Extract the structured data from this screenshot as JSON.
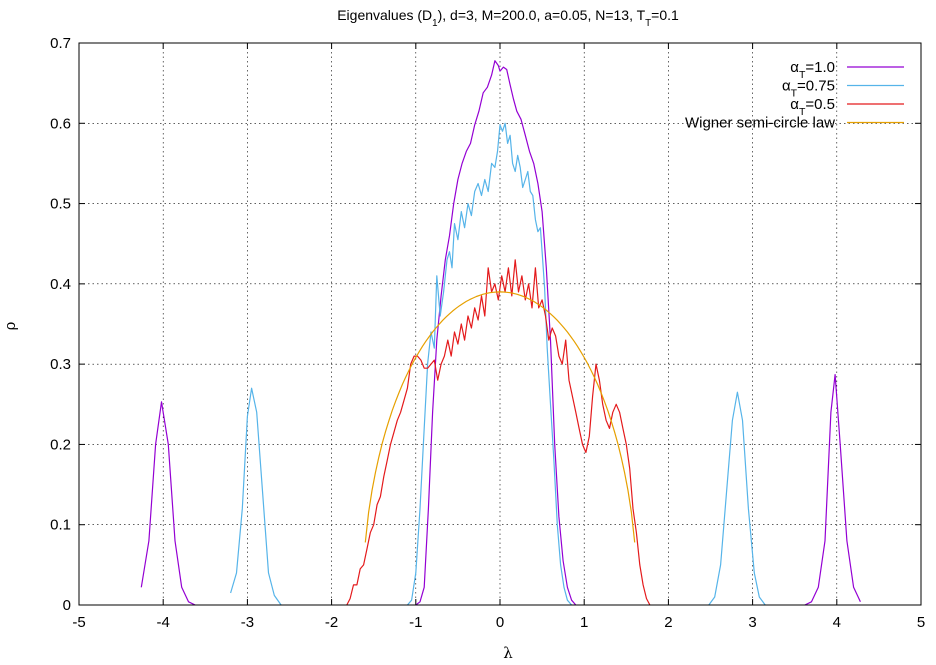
{
  "chart_data": {
    "type": "line",
    "title_parts": [
      {
        "t": "Eigenvalues (D"
      },
      {
        "t": "1",
        "sub": true
      },
      {
        "t": "), d=3, M=200.0, a=0.05, N=13, T"
      },
      {
        "t": "T",
        "sub": true
      },
      {
        "t": "=0.1"
      }
    ],
    "title": "Eigenvalues (D1), d=3, M=200.0, a=0.05, N=13, TT=0.1",
    "xlabel": "λ",
    "ylabel": "ρ",
    "xlim": [
      -5,
      5
    ],
    "ylim": [
      0,
      0.7
    ],
    "xticks": [
      -5,
      -4,
      -3,
      -2,
      -1,
      0,
      1,
      2,
      3,
      4,
      5
    ],
    "yticks": [
      0,
      0.1,
      0.2,
      0.3,
      0.4,
      0.5,
      0.6,
      0.7
    ],
    "grid": true,
    "legend_position": "top-right",
    "series": [
      {
        "name": "αT=1.0",
        "name_parts": [
          {
            "t": "α"
          },
          {
            "t": "T",
            "sub": true
          },
          {
            "t": "=1.0"
          }
        ],
        "color": "#9400d3",
        "points": [
          [
            -4.26,
            0.022
          ],
          [
            -4.17,
            0.08
          ],
          [
            -4.09,
            0.2
          ],
          [
            -4.02,
            0.253
          ],
          [
            -3.94,
            0.2
          ],
          [
            -3.86,
            0.08
          ],
          [
            -3.78,
            0.022
          ],
          [
            -3.7,
            0.004
          ],
          [
            -3.62,
            0.0
          ],
          null,
          [
            -1.0,
            0.0
          ],
          [
            -0.95,
            0.004
          ],
          [
            -0.9,
            0.022
          ],
          [
            -0.85,
            0.12
          ],
          [
            -0.8,
            0.24
          ],
          [
            -0.75,
            0.33
          ],
          [
            -0.7,
            0.385
          ],
          [
            -0.65,
            0.43
          ],
          [
            -0.6,
            0.46
          ],
          [
            -0.55,
            0.5
          ],
          [
            -0.5,
            0.53
          ],
          [
            -0.45,
            0.55
          ],
          [
            -0.4,
            0.565
          ],
          [
            -0.35,
            0.575
          ],
          [
            -0.3,
            0.598
          ],
          [
            -0.25,
            0.615
          ],
          [
            -0.2,
            0.638
          ],
          [
            -0.15,
            0.645
          ],
          [
            -0.1,
            0.66
          ],
          [
            -0.06,
            0.678
          ],
          [
            -0.02,
            0.672
          ],
          [
            0.0,
            0.665
          ],
          [
            0.04,
            0.67
          ],
          [
            0.08,
            0.667
          ],
          [
            0.12,
            0.648
          ],
          [
            0.16,
            0.63
          ],
          [
            0.2,
            0.615
          ],
          [
            0.25,
            0.605
          ],
          [
            0.3,
            0.585
          ],
          [
            0.35,
            0.565
          ],
          [
            0.4,
            0.55
          ],
          [
            0.45,
            0.525
          ],
          [
            0.5,
            0.49
          ],
          [
            0.55,
            0.42
          ],
          [
            0.6,
            0.33
          ],
          [
            0.65,
            0.2
          ],
          [
            0.7,
            0.11
          ],
          [
            0.75,
            0.055
          ],
          [
            0.8,
            0.022
          ],
          [
            0.85,
            0.006
          ],
          [
            0.9,
            0.0
          ],
          null,
          [
            3.62,
            0.0
          ],
          [
            3.7,
            0.004
          ],
          [
            3.78,
            0.022
          ],
          [
            3.86,
            0.08
          ],
          [
            3.93,
            0.24
          ],
          [
            3.98,
            0.287
          ],
          [
            4.04,
            0.2
          ],
          [
            4.12,
            0.08
          ],
          [
            4.2,
            0.022
          ],
          [
            4.28,
            0.004
          ]
        ]
      },
      {
        "name": "αT=0.75",
        "name_parts": [
          {
            "t": "α"
          },
          {
            "t": "T",
            "sub": true
          },
          {
            "t": "=0.75"
          }
        ],
        "color": "#56b4e9",
        "points": [
          [
            -3.2,
            0.015
          ],
          [
            -3.13,
            0.04
          ],
          [
            -3.06,
            0.12
          ],
          [
            -3.0,
            0.235
          ],
          [
            -2.95,
            0.27
          ],
          [
            -2.89,
            0.24
          ],
          [
            -2.82,
            0.14
          ],
          [
            -2.75,
            0.04
          ],
          [
            -2.68,
            0.012
          ],
          [
            -2.6,
            0.0
          ],
          null,
          [
            -1.1,
            0.0
          ],
          [
            -1.05,
            0.006
          ],
          [
            -1.0,
            0.04
          ],
          [
            -0.95,
            0.12
          ],
          [
            -0.9,
            0.22
          ],
          [
            -0.86,
            0.3
          ],
          [
            -0.82,
            0.34
          ],
          [
            -0.78,
            0.32
          ],
          [
            -0.75,
            0.41
          ],
          [
            -0.71,
            0.36
          ],
          [
            -0.67,
            0.39
          ],
          [
            -0.63,
            0.43
          ],
          [
            -0.6,
            0.44
          ],
          [
            -0.57,
            0.42
          ],
          [
            -0.54,
            0.475
          ],
          [
            -0.5,
            0.455
          ],
          [
            -0.46,
            0.49
          ],
          [
            -0.42,
            0.47
          ],
          [
            -0.38,
            0.5
          ],
          [
            -0.34,
            0.485
          ],
          [
            -0.3,
            0.515
          ],
          [
            -0.26,
            0.525
          ],
          [
            -0.22,
            0.51
          ],
          [
            -0.18,
            0.53
          ],
          [
            -0.14,
            0.515
          ],
          [
            -0.1,
            0.55
          ],
          [
            -0.06,
            0.545
          ],
          [
            -0.03,
            0.565
          ],
          [
            0.0,
            0.598
          ],
          [
            0.03,
            0.59
          ],
          [
            0.06,
            0.6
          ],
          [
            0.09,
            0.575
          ],
          [
            0.12,
            0.585
          ],
          [
            0.15,
            0.55
          ],
          [
            0.18,
            0.54
          ],
          [
            0.21,
            0.56
          ],
          [
            0.24,
            0.545
          ],
          [
            0.27,
            0.52
          ],
          [
            0.3,
            0.53
          ],
          [
            0.33,
            0.54
          ],
          [
            0.36,
            0.515
          ],
          [
            0.39,
            0.51
          ],
          [
            0.42,
            0.48
          ],
          [
            0.45,
            0.465
          ],
          [
            0.48,
            0.47
          ],
          [
            0.5,
            0.44
          ],
          [
            0.53,
            0.395
          ],
          [
            0.56,
            0.32
          ],
          [
            0.6,
            0.25
          ],
          [
            0.64,
            0.18
          ],
          [
            0.68,
            0.1
          ],
          [
            0.72,
            0.05
          ],
          [
            0.76,
            0.022
          ],
          [
            0.8,
            0.006
          ],
          [
            0.85,
            0.0
          ],
          null,
          [
            2.48,
            0.0
          ],
          [
            2.55,
            0.01
          ],
          [
            2.62,
            0.05
          ],
          [
            2.69,
            0.14
          ],
          [
            2.76,
            0.23
          ],
          [
            2.82,
            0.265
          ],
          [
            2.88,
            0.23
          ],
          [
            2.95,
            0.12
          ],
          [
            3.02,
            0.04
          ],
          [
            3.08,
            0.01
          ],
          [
            3.15,
            0.0
          ]
        ]
      },
      {
        "name": "αT=0.5",
        "name_parts": [
          {
            "t": "α"
          },
          {
            "t": "T",
            "sub": true
          },
          {
            "t": "=0.5"
          }
        ],
        "color": "#e41a1c",
        "points": [
          [
            -1.82,
            0.0
          ],
          [
            -1.78,
            0.008
          ],
          [
            -1.74,
            0.025
          ],
          [
            -1.7,
            0.025
          ],
          [
            -1.66,
            0.045
          ],
          [
            -1.62,
            0.05
          ],
          [
            -1.58,
            0.07
          ],
          [
            -1.54,
            0.09
          ],
          [
            -1.5,
            0.1
          ],
          [
            -1.46,
            0.125
          ],
          [
            -1.42,
            0.135
          ],
          [
            -1.38,
            0.16
          ],
          [
            -1.34,
            0.18
          ],
          [
            -1.3,
            0.2
          ],
          [
            -1.26,
            0.215
          ],
          [
            -1.22,
            0.23
          ],
          [
            -1.18,
            0.24
          ],
          [
            -1.14,
            0.255
          ],
          [
            -1.1,
            0.27
          ],
          [
            -1.06,
            0.3
          ],
          [
            -1.02,
            0.31
          ],
          [
            -0.98,
            0.31
          ],
          [
            -0.94,
            0.305
          ],
          [
            -0.9,
            0.295
          ],
          [
            -0.86,
            0.295
          ],
          [
            -0.82,
            0.3
          ],
          [
            -0.78,
            0.305
          ],
          [
            -0.74,
            0.28
          ],
          [
            -0.7,
            0.3
          ],
          [
            -0.66,
            0.31
          ],
          [
            -0.62,
            0.33
          ],
          [
            -0.58,
            0.31
          ],
          [
            -0.54,
            0.34
          ],
          [
            -0.5,
            0.325
          ],
          [
            -0.46,
            0.35
          ],
          [
            -0.42,
            0.33
          ],
          [
            -0.38,
            0.36
          ],
          [
            -0.34,
            0.345
          ],
          [
            -0.3,
            0.37
          ],
          [
            -0.26,
            0.355
          ],
          [
            -0.22,
            0.385
          ],
          [
            -0.18,
            0.36
          ],
          [
            -0.14,
            0.42
          ],
          [
            -0.1,
            0.39
          ],
          [
            -0.06,
            0.4
          ],
          [
            -0.02,
            0.38
          ],
          [
            0.02,
            0.41
          ],
          [
            0.06,
            0.39
          ],
          [
            0.1,
            0.42
          ],
          [
            0.14,
            0.385
          ],
          [
            0.18,
            0.43
          ],
          [
            0.22,
            0.39
          ],
          [
            0.26,
            0.41
          ],
          [
            0.3,
            0.38
          ],
          [
            0.34,
            0.4
          ],
          [
            0.38,
            0.37
          ],
          [
            0.42,
            0.42
          ],
          [
            0.46,
            0.37
          ],
          [
            0.5,
            0.38
          ],
          [
            0.54,
            0.36
          ],
          [
            0.58,
            0.33
          ],
          [
            0.62,
            0.345
          ],
          [
            0.66,
            0.335
          ],
          [
            0.7,
            0.31
          ],
          [
            0.74,
            0.3
          ],
          [
            0.78,
            0.33
          ],
          [
            0.82,
            0.28
          ],
          [
            0.86,
            0.26
          ],
          [
            0.9,
            0.24
          ],
          [
            0.94,
            0.22
          ],
          [
            0.98,
            0.2
          ],
          [
            1.02,
            0.19
          ],
          [
            1.06,
            0.21
          ],
          [
            1.1,
            0.26
          ],
          [
            1.14,
            0.3
          ],
          [
            1.18,
            0.28
          ],
          [
            1.22,
            0.25
          ],
          [
            1.26,
            0.23
          ],
          [
            1.3,
            0.22
          ],
          [
            1.34,
            0.24
          ],
          [
            1.38,
            0.25
          ],
          [
            1.42,
            0.24
          ],
          [
            1.46,
            0.22
          ],
          [
            1.5,
            0.2
          ],
          [
            1.54,
            0.17
          ],
          [
            1.58,
            0.12
          ],
          [
            1.62,
            0.09
          ],
          [
            1.66,
            0.05
          ],
          [
            1.7,
            0.025
          ],
          [
            1.74,
            0.008
          ],
          [
            1.78,
            0.0
          ]
        ]
      },
      {
        "name": "Wigner semi-circle law",
        "name_parts": [
          {
            "t": "Wigner semi-circle law"
          }
        ],
        "color": "#e6a000",
        "function": "semicircle",
        "radius": 1.633,
        "peak": 0.39,
        "x_range": [
          -1.6,
          1.6
        ]
      }
    ]
  }
}
